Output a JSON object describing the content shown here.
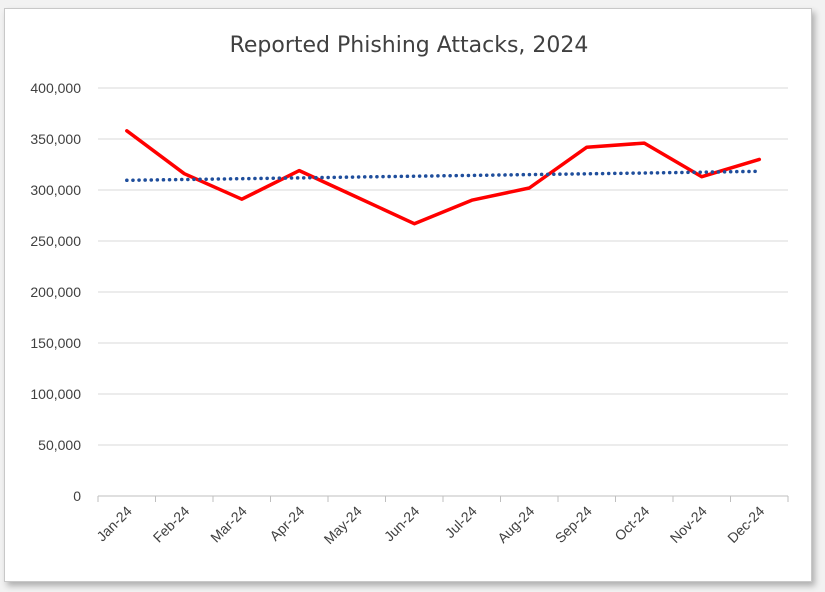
{
  "chart_data": {
    "type": "line",
    "title": "Reported Phishing Attacks, 2024",
    "xlabel": "",
    "ylabel": "",
    "categories": [
      "Jan-24",
      "Feb-24",
      "Mar-24",
      "Apr-24",
      "May-24",
      "Jun-24",
      "Jul-24",
      "Aug-24",
      "Sep-24",
      "Oct-24",
      "Nov-24",
      "Dec-24"
    ],
    "series": [
      {
        "values": [
          358000,
          316000,
          291000,
          319000,
          293000,
          267000,
          290000,
          302000,
          342000,
          346000,
          313000,
          330000
        ],
        "color": "#ff0000",
        "style": "solid"
      },
      {
        "values": [
          309500,
          310300,
          311100,
          311900,
          312700,
          313500,
          314300,
          315100,
          315900,
          316700,
          317500,
          318300
        ],
        "color": "#1f4e9c",
        "style": "dotted"
      }
    ],
    "ylim": [
      0,
      400000
    ],
    "yticks": [
      "0",
      "50,000",
      "100,000",
      "150,000",
      "200,000",
      "250,000",
      "300,000",
      "350,000",
      "400,000"
    ],
    "ytick_values": [
      0,
      50000,
      100000,
      150000,
      200000,
      250000,
      300000,
      350000,
      400000
    ],
    "grid": true,
    "legend": "none"
  }
}
